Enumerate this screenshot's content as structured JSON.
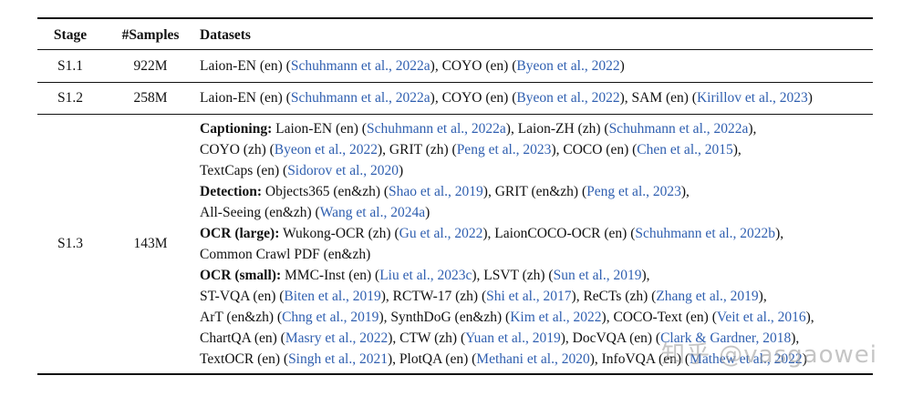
{
  "header": {
    "stage": "Stage",
    "samples": "#Samples",
    "datasets": "Datasets"
  },
  "rows": [
    {
      "stage": "S1.1",
      "samples": "922M",
      "lines": [
        [
          {
            "t": "Laion-EN (en) ("
          },
          {
            "t": "Schuhmann et al., 2022a",
            "c": 1
          },
          {
            "t": "), COYO (en) ("
          },
          {
            "t": "Byeon et al., 2022",
            "c": 1
          },
          {
            "t": ")"
          }
        ]
      ]
    },
    {
      "stage": "S1.2",
      "samples": "258M",
      "lines": [
        [
          {
            "t": "Laion-EN (en) ("
          },
          {
            "t": "Schuhmann et al., 2022a",
            "c": 1
          },
          {
            "t": "), COYO (en) ("
          },
          {
            "t": "Byeon et al., 2022",
            "c": 1
          },
          {
            "t": "), SAM (en) ("
          },
          {
            "t": "Kirillov et al., 2023",
            "c": 1
          },
          {
            "t": ")"
          }
        ]
      ]
    },
    {
      "stage": "S1.3",
      "samples": "143M",
      "lines": [
        [
          {
            "t": "Captioning:",
            "b": 1
          },
          {
            "t": " Laion-EN (en) ("
          },
          {
            "t": "Schuhmann et al., 2022a",
            "c": 1
          },
          {
            "t": "), Laion-ZH (zh) ("
          },
          {
            "t": "Schuhmann et al., 2022a",
            "c": 1
          },
          {
            "t": "),"
          }
        ],
        [
          {
            "t": "COYO (zh) ("
          },
          {
            "t": "Byeon et al., 2022",
            "c": 1
          },
          {
            "t": "), GRIT (zh) ("
          },
          {
            "t": "Peng et al., 2023",
            "c": 1
          },
          {
            "t": "), COCO (en) ("
          },
          {
            "t": "Chen et al., 2015",
            "c": 1
          },
          {
            "t": "),"
          }
        ],
        [
          {
            "t": "TextCaps (en) ("
          },
          {
            "t": "Sidorov et al., 2020",
            "c": 1
          },
          {
            "t": ")"
          }
        ],
        [
          {
            "t": "Detection:",
            "b": 1
          },
          {
            "t": " Objects365 (en&zh) ("
          },
          {
            "t": "Shao et al., 2019",
            "c": 1
          },
          {
            "t": "), GRIT (en&zh) ("
          },
          {
            "t": "Peng et al., 2023",
            "c": 1
          },
          {
            "t": "),"
          }
        ],
        [
          {
            "t": "All-Seeing (en&zh) ("
          },
          {
            "t": "Wang et al., 2024a",
            "c": 1
          },
          {
            "t": ")"
          }
        ],
        [
          {
            "t": "OCR (large):",
            "b": 1
          },
          {
            "t": " Wukong-OCR (zh) ("
          },
          {
            "t": "Gu et al., 2022",
            "c": 1
          },
          {
            "t": "), LaionCOCO-OCR (en) ("
          },
          {
            "t": "Schuhmann et al., 2022b",
            "c": 1
          },
          {
            "t": "),"
          }
        ],
        [
          {
            "t": "Common Crawl PDF (en&zh)"
          }
        ],
        [
          {
            "t": "OCR (small):",
            "b": 1
          },
          {
            "t": " MMC-Inst (en) ("
          },
          {
            "t": "Liu et al., 2023c",
            "c": 1
          },
          {
            "t": "), LSVT (zh) ("
          },
          {
            "t": "Sun et al., 2019",
            "c": 1
          },
          {
            "t": "),"
          }
        ],
        [
          {
            "t": "ST-VQA (en) ("
          },
          {
            "t": "Biten et al., 2019",
            "c": 1
          },
          {
            "t": "), RCTW-17 (zh) ("
          },
          {
            "t": "Shi et al., 2017",
            "c": 1
          },
          {
            "t": "), ReCTs (zh) ("
          },
          {
            "t": "Zhang et al., 2019",
            "c": 1
          },
          {
            "t": "),"
          }
        ],
        [
          {
            "t": "ArT (en&zh) ("
          },
          {
            "t": "Chng et al., 2019",
            "c": 1
          },
          {
            "t": "), SynthDoG (en&zh) ("
          },
          {
            "t": "Kim et al., 2022",
            "c": 1
          },
          {
            "t": "), COCO-Text (en) ("
          },
          {
            "t": "Veit et al., 2016",
            "c": 1
          },
          {
            "t": "),"
          }
        ],
        [
          {
            "t": "ChartQA (en) ("
          },
          {
            "t": "Masry et al., 2022",
            "c": 1
          },
          {
            "t": "), CTW (zh) ("
          },
          {
            "t": "Yuan et al., 2019",
            "c": 1
          },
          {
            "t": "), DocVQA (en) ("
          },
          {
            "t": "Clark & Gardner, 2018",
            "c": 1
          },
          {
            "t": "),"
          }
        ],
        [
          {
            "t": "TextOCR (en) ("
          },
          {
            "t": "Singh et al., 2021",
            "c": 1
          },
          {
            "t": "), PlotQA (en) ("
          },
          {
            "t": "Methani et al., 2020",
            "c": 1
          },
          {
            "t": "), InfoVQA (en) ("
          },
          {
            "t": "Mathew et al., 2022",
            "c": 1
          },
          {
            "t": ")"
          }
        ]
      ]
    }
  ],
  "watermark": "知乎 @vasgaowei"
}
